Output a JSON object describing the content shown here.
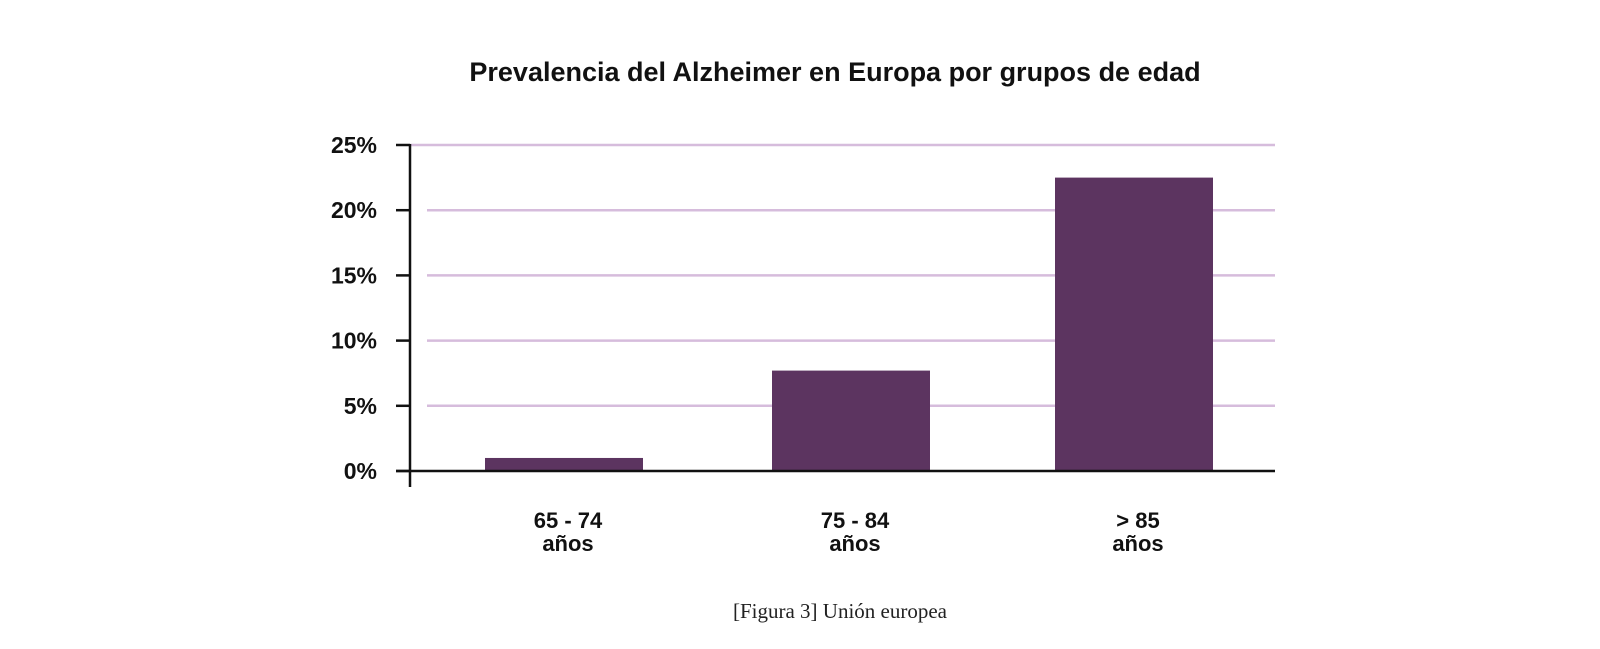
{
  "chart_data": {
    "type": "bar",
    "title": "Prevalencia del Alzheimer en Europa por grupos de edad",
    "categories": [
      {
        "line1": "65 - 74",
        "line2": "años"
      },
      {
        "line1": "75 - 84",
        "line2": "años"
      },
      {
        "line1": "> 85",
        "line2": "años"
      }
    ],
    "values": [
      1,
      7.7,
      22.5
    ],
    "unit": "%",
    "xlabel": "",
    "ylabel": "",
    "ylim": [
      0,
      25
    ],
    "yticks": [
      0,
      5,
      10,
      15,
      20,
      25
    ],
    "ytick_labels": [
      "0%",
      "5%",
      "10%",
      "15%",
      "20%",
      "25%"
    ],
    "grid": true,
    "legend": "none",
    "caption": "[Figura 3] Unión europea"
  },
  "colors": {
    "bar": "#5c3460",
    "grid": "#d6bcdc",
    "axis": "#111111"
  }
}
